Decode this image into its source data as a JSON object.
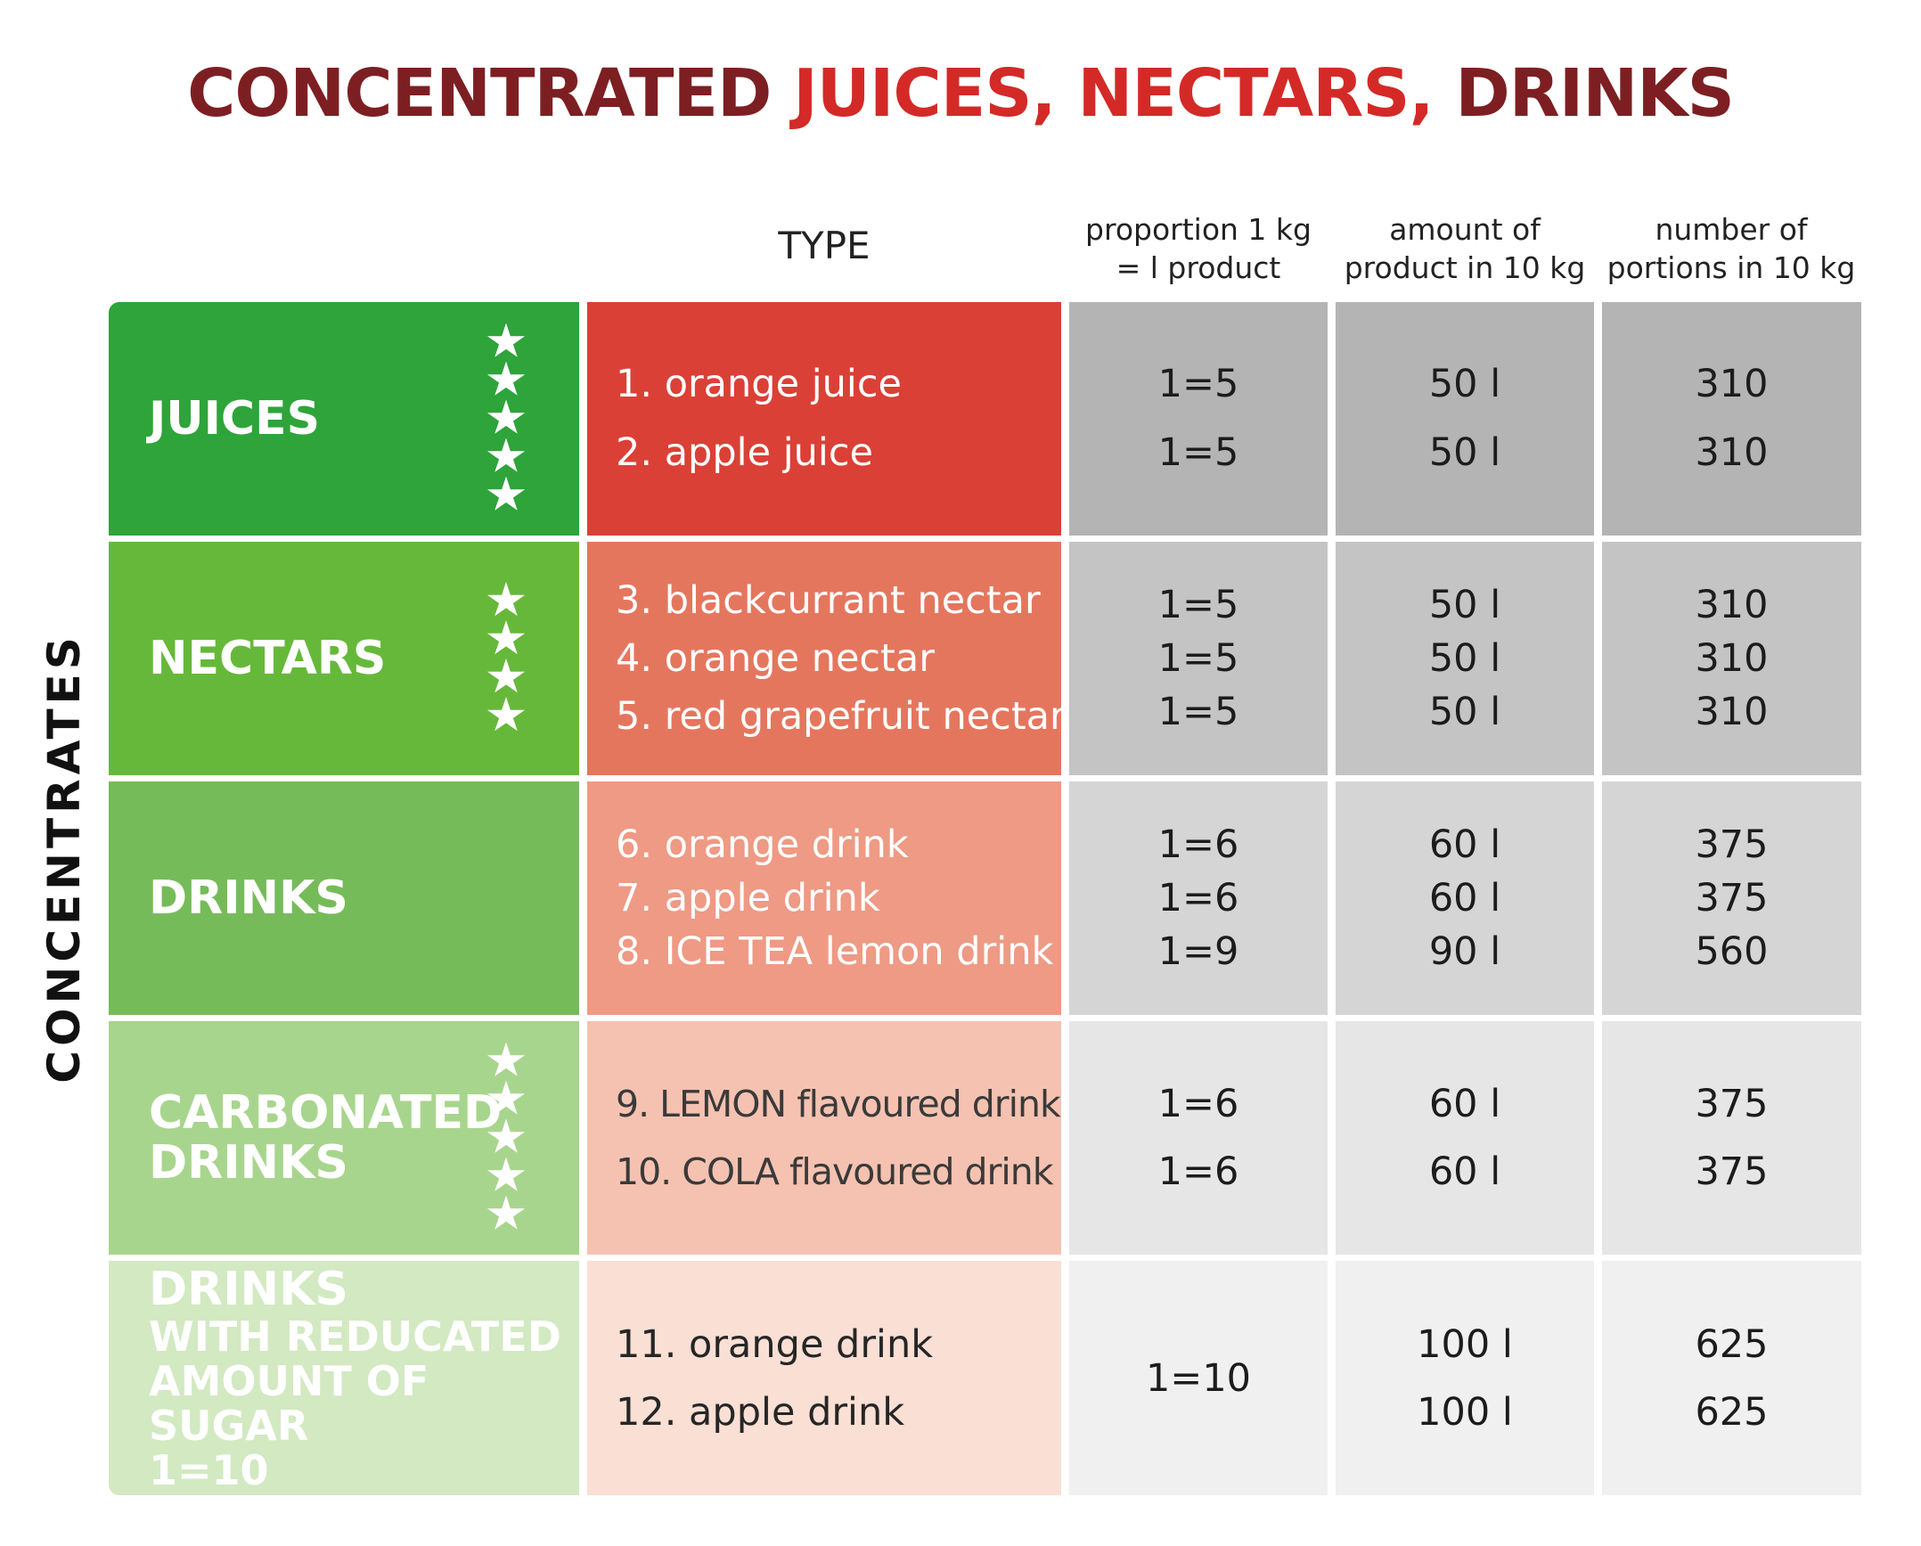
{
  "title": {
    "part1": "CONCENTRATED ",
    "part2": "JUICES, NECTARS, ",
    "part3": "DRINKS"
  },
  "side_label": "CONCENTRATES",
  "headers": {
    "type": "TYPE",
    "proportion": [
      "proportion 1 kg",
      "= l product"
    ],
    "amount": [
      "amount of",
      "product in 10 kg"
    ],
    "portions": [
      "number of",
      "portions in 10 kg"
    ]
  },
  "colors": {
    "title_dark": "#7d1f22",
    "title_red": "#d32a27",
    "cat": [
      "#2ea43a",
      "#66b83a",
      "#76bb5a",
      "#a8d58d",
      "#d2e9c2"
    ],
    "type": [
      "#db4036",
      "#e5765e",
      "#ee9a84",
      "#f5c2b1",
      "#fadfd4"
    ],
    "val": [
      "#b4b4b4",
      "#c4c4c4",
      "#d5d5d5",
      "#e6e6e6",
      "#f0f0f0"
    ],
    "type_text": [
      "#ffffff",
      "#ffffff",
      "#ffffff",
      "#3a3a3a",
      "#262626"
    ]
  },
  "rows": [
    {
      "category": [
        "JUICES"
      ],
      "stars": 5,
      "types": [
        "1. orange juice",
        "2. apple juice"
      ],
      "proportion": [
        "1=5",
        "1=5"
      ],
      "amount": [
        "50 l",
        "50 l"
      ],
      "portions": [
        "310",
        "310"
      ]
    },
    {
      "category": [
        "NECTARS"
      ],
      "stars": 4,
      "types": [
        "3. blackcurrant nectar",
        "4. orange nectar",
        "5. red grapefruit nectar"
      ],
      "proportion": [
        "1=5",
        "1=5",
        "1=5"
      ],
      "amount": [
        "50 l",
        "50 l",
        "50 l"
      ],
      "portions": [
        "310",
        "310",
        "310"
      ]
    },
    {
      "category": [
        "DRINKS"
      ],
      "stars": 0,
      "types": [
        "6. orange drink",
        "7. apple drink",
        "8. ICE TEA lemon drink"
      ],
      "proportion": [
        "1=6",
        "1=6",
        "1=9"
      ],
      "amount": [
        "60 l",
        "60 l",
        "90 l"
      ],
      "portions": [
        "375",
        "375",
        "560"
      ]
    },
    {
      "category": [
        "CARBONATED",
        "DRINKS"
      ],
      "stars": 5,
      "types": [
        "9. LEMON flavoured drink",
        "10. COLA flavoured drink"
      ],
      "proportion": [
        "1=6",
        "1=6"
      ],
      "amount": [
        "60 l",
        "60 l"
      ],
      "portions": [
        "375",
        "375"
      ]
    },
    {
      "category": [
        "DRINKS",
        "WITH REDUCATED",
        "AMOUNT OF SUGAR",
        "1=10"
      ],
      "stars": 0,
      "types": [
        "11. orange drink",
        "12. apple drink"
      ],
      "proportion": [
        "1=10"
      ],
      "amount": [
        "100 l",
        "100 l"
      ],
      "portions": [
        "625",
        "625"
      ]
    }
  ]
}
